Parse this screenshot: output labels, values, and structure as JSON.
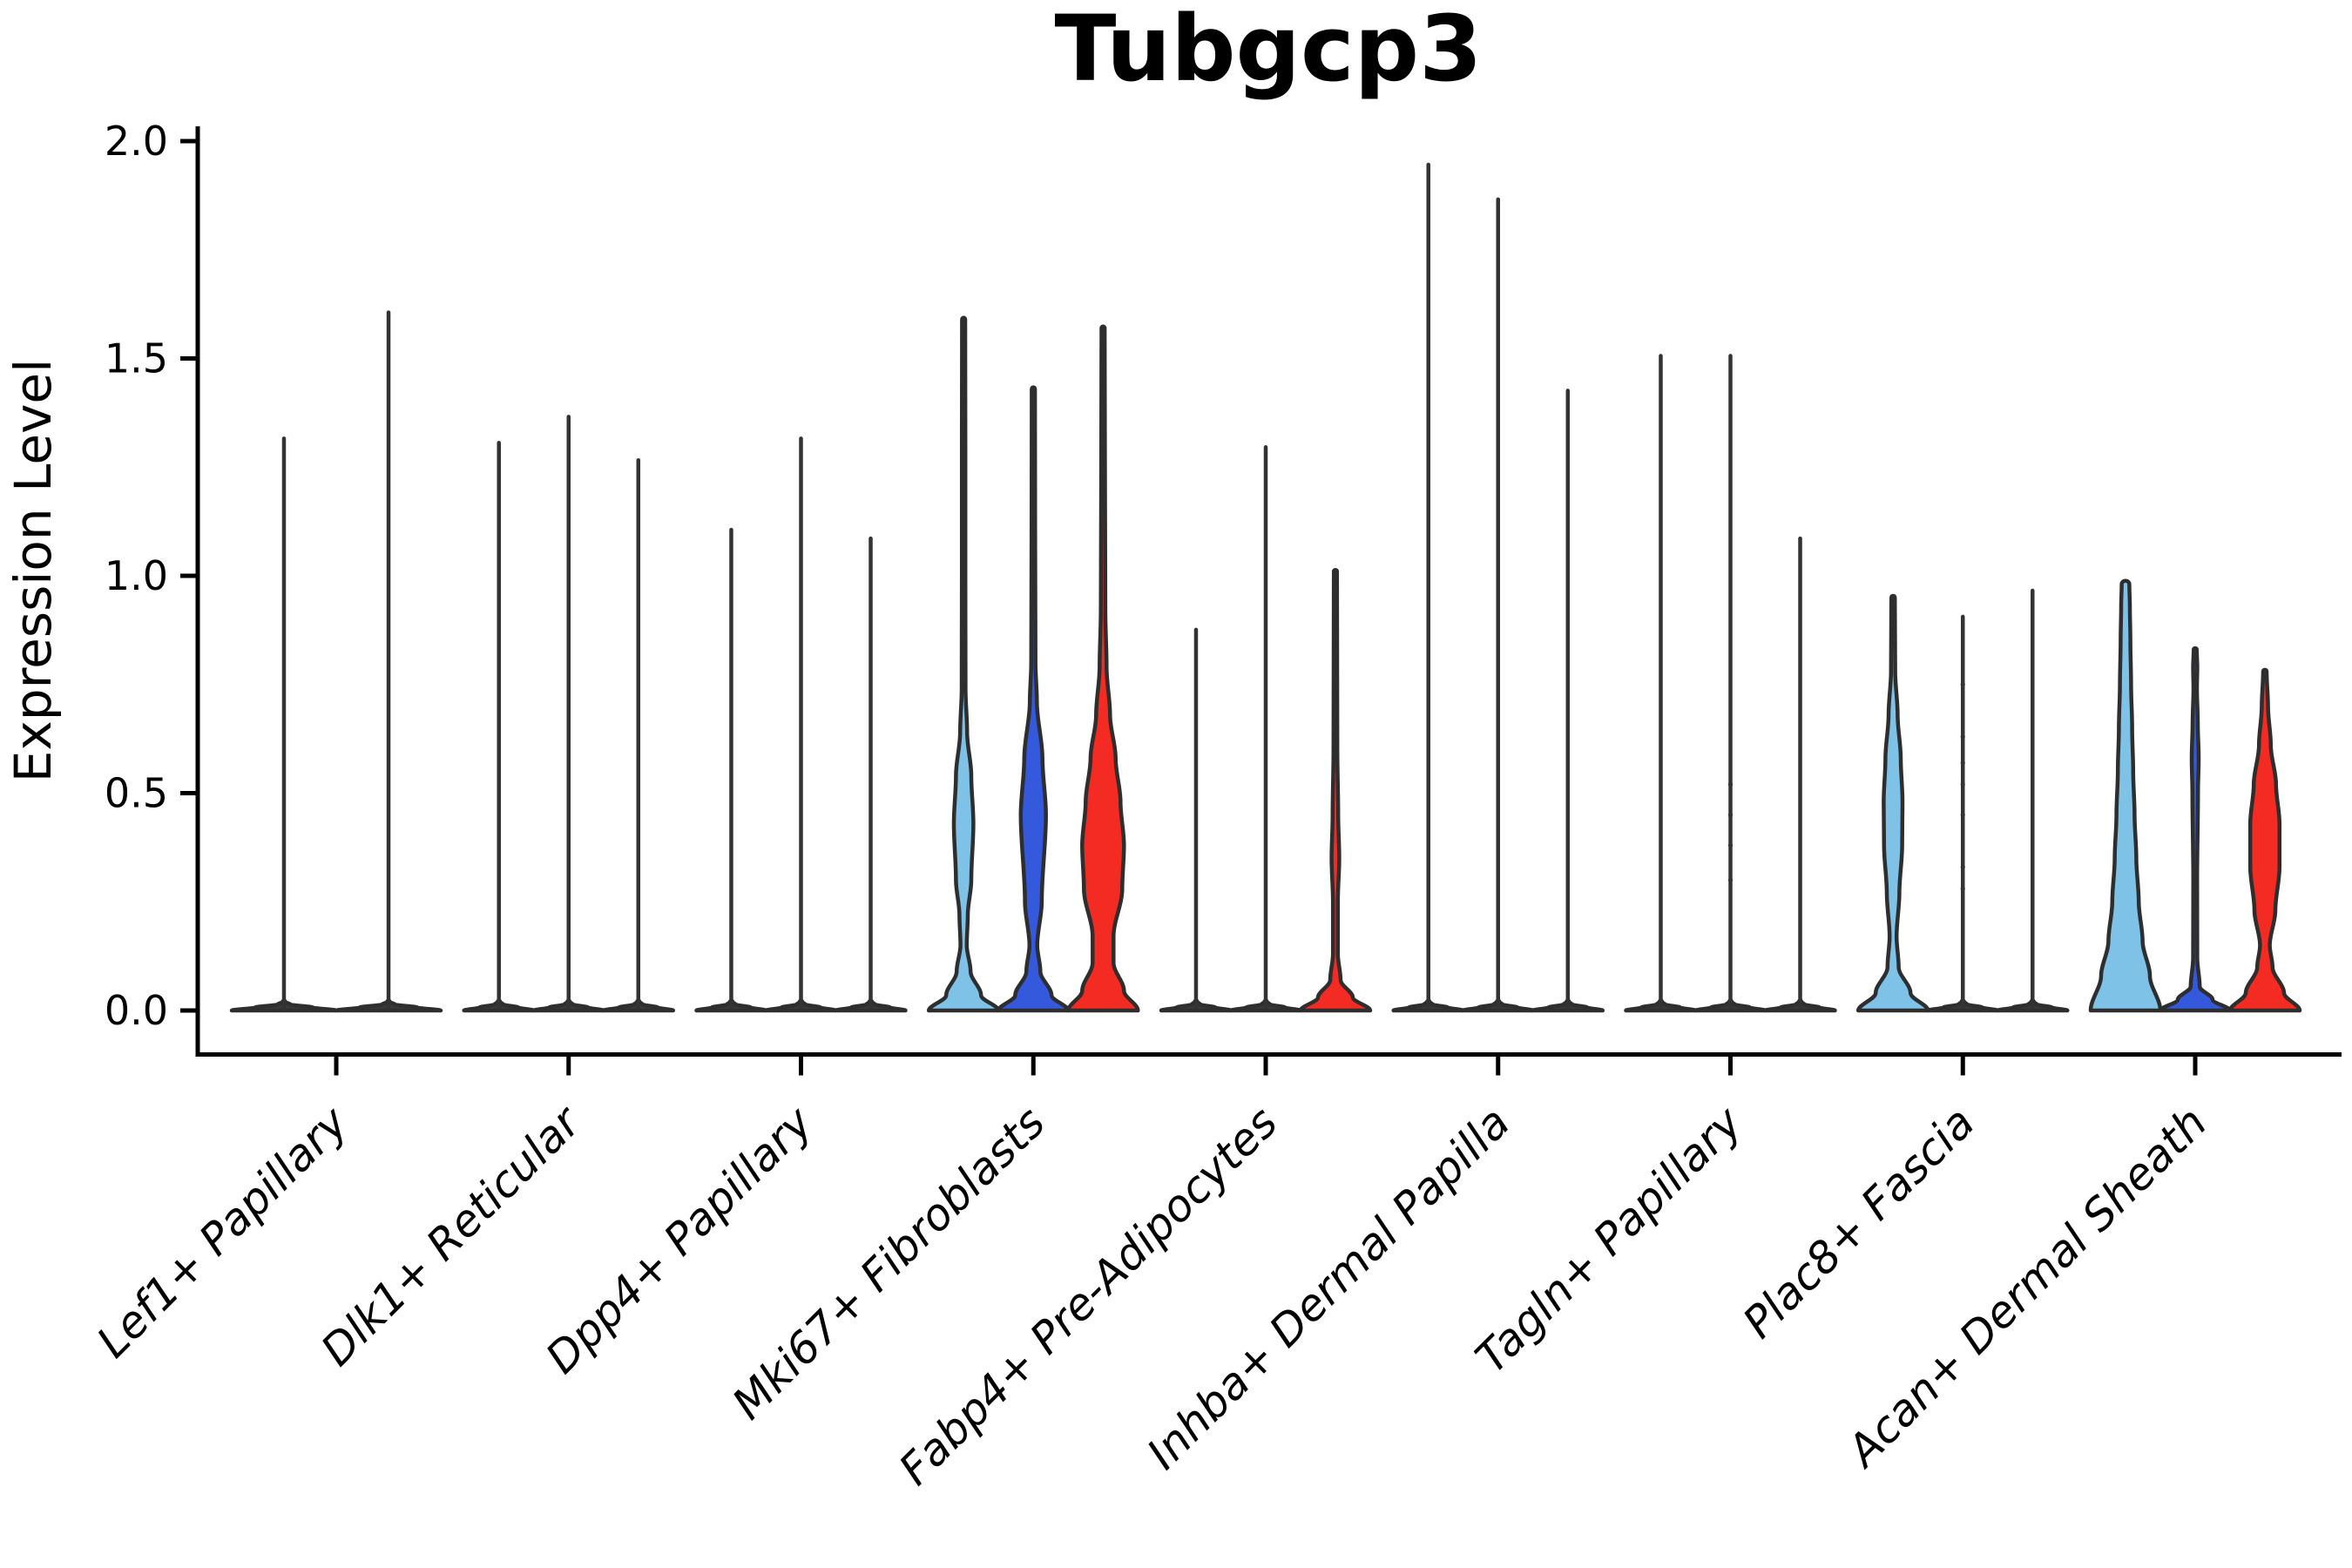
{
  "title": "Tubgcp3",
  "ylabel": "Expression Level",
  "colors": {
    "outline": "#2e2e2e",
    "spike": "#333333",
    "spike_base_fill": "#3a3a3a",
    "axis": "#000000",
    "background": "#ffffff",
    "series": {
      "skyblue": "#7fc2e8",
      "blue": "#3459dc",
      "red": "#f32b22"
    }
  },
  "chart_data": {
    "type": "violin",
    "title": "Tubgcp3",
    "xlabel": "",
    "ylabel": "Expression Level",
    "ylim": [
      0,
      2.0
    ],
    "yticks": [
      0.0,
      0.5,
      1.0,
      1.5,
      2.0
    ],
    "ytick_labels": [
      "0.0",
      "0.5",
      "1.0",
      "1.5",
      "2.0"
    ],
    "grid": false,
    "legend": "none",
    "categories": [
      "Lef1+ Papillary",
      "Dlk1+ Reticular",
      "Dpp4+ Papillary",
      "Mki67+ Fibroblasts",
      "Fabp4+ Pre-Adipocytes",
      "Inhba+ Dermal Papilla",
      "Tagln+ Papillary",
      "Plac8+ Fascia",
      "Acan+ Dermal Sheath"
    ],
    "groups": [
      {
        "category": "Lef1+ Papillary",
        "violins": [
          {
            "color": "skyblue",
            "offset": -0.225,
            "width": 0.45,
            "max": 1.32,
            "shape": "spike"
          },
          {
            "color": "red",
            "offset": 0.225,
            "width": 0.45,
            "max": 1.61,
            "shape": "spike"
          }
        ]
      },
      {
        "category": "Dlk1+ Reticular",
        "violins": [
          {
            "color": "skyblue",
            "offset": -0.3,
            "width": 0.3,
            "max": 1.31,
            "shape": "spike"
          },
          {
            "color": "blue",
            "offset": 0.0,
            "width": 0.3,
            "max": 1.37,
            "shape": "spike"
          },
          {
            "color": "red",
            "offset": 0.3,
            "width": 0.3,
            "max": 1.27,
            "shape": "spike"
          }
        ]
      },
      {
        "category": "Dpp4+ Papillary",
        "violins": [
          {
            "color": "skyblue",
            "offset": -0.3,
            "width": 0.3,
            "max": 1.11,
            "shape": "spike"
          },
          {
            "color": "blue",
            "offset": 0.0,
            "width": 0.3,
            "max": 1.32,
            "shape": "spike"
          },
          {
            "color": "red",
            "offset": 0.3,
            "width": 0.3,
            "max": 1.09,
            "shape": "spike"
          }
        ]
      },
      {
        "category": "Mki67+ Fibroblasts",
        "violins": [
          {
            "color": "skyblue",
            "offset": -0.3,
            "width": 0.3,
            "max": 1.59,
            "shape": "violin",
            "profile": [
              [
                0,
                1
              ],
              [
                0.035,
                0.5
              ],
              [
                0.09,
                0.2
              ],
              [
                0.15,
                0.09
              ],
              [
                0.22,
                0.12
              ],
              [
                0.3,
                0.22
              ],
              [
                0.43,
                0.28
              ],
              [
                0.54,
                0.22
              ],
              [
                0.64,
                0.1
              ],
              [
                0.74,
                0.055
              ],
              [
                1.0,
                0.05
              ],
              [
                1.3,
                0.05
              ],
              [
                1.59,
                0.045
              ]
            ]
          },
          {
            "color": "blue",
            "offset": 0.0,
            "width": 0.3,
            "max": 1.43,
            "shape": "violin",
            "profile": [
              [
                0,
                1
              ],
              [
                0.035,
                0.52
              ],
              [
                0.09,
                0.2
              ],
              [
                0.15,
                0.11
              ],
              [
                0.25,
                0.24
              ],
              [
                0.45,
                0.36
              ],
              [
                0.58,
                0.26
              ],
              [
                0.71,
                0.1
              ],
              [
                0.8,
                0.06
              ],
              [
                1.1,
                0.05
              ],
              [
                1.43,
                0.045
              ]
            ]
          },
          {
            "color": "red",
            "offset": 0.3,
            "width": 0.3,
            "max": 1.57,
            "shape": "violin",
            "profile": [
              [
                0,
                1
              ],
              [
                0.045,
                0.6
              ],
              [
                0.11,
                0.3
              ],
              [
                0.17,
                0.3
              ],
              [
                0.28,
                0.55
              ],
              [
                0.38,
                0.6
              ],
              [
                0.48,
                0.5
              ],
              [
                0.58,
                0.36
              ],
              [
                0.68,
                0.2
              ],
              [
                0.79,
                0.1
              ],
              [
                0.92,
                0.065
              ],
              [
                1.2,
                0.055
              ],
              [
                1.57,
                0.045
              ]
            ]
          }
        ]
      },
      {
        "category": "Fabp4+ Pre-Adipocytes",
        "violins": [
          {
            "color": "skyblue",
            "offset": -0.3,
            "width": 0.3,
            "max": 0.88,
            "shape": "spike"
          },
          {
            "color": "blue",
            "offset": 0.0,
            "width": 0.3,
            "max": 1.3,
            "shape": "spike"
          },
          {
            "color": "red",
            "offset": 0.3,
            "width": 0.3,
            "max": 1.01,
            "shape": "violin",
            "profile": [
              [
                0,
                1
              ],
              [
                0.03,
                0.5
              ],
              [
                0.07,
                0.15
              ],
              [
                0.13,
                0.07
              ],
              [
                0.25,
                0.07
              ],
              [
                0.35,
                0.11
              ],
              [
                0.45,
                0.08
              ],
              [
                0.6,
                0.055
              ],
              [
                0.8,
                0.05
              ],
              [
                1.01,
                0.045
              ]
            ]
          }
        ]
      },
      {
        "category": "Inhba+ Dermal Papilla",
        "violins": [
          {
            "color": "skyblue",
            "offset": -0.3,
            "width": 0.3,
            "max": 1.95,
            "shape": "spike"
          },
          {
            "color": "blue",
            "offset": 0.0,
            "width": 0.3,
            "max": 1.87,
            "shape": "spike"
          },
          {
            "color": "red",
            "offset": 0.3,
            "width": 0.3,
            "max": 1.43,
            "shape": "spike"
          }
        ]
      },
      {
        "category": "Tagln+ Papillary",
        "violins": [
          {
            "color": "skyblue",
            "offset": -0.3,
            "width": 0.3,
            "max": 1.51,
            "shape": "spike"
          },
          {
            "color": "blue",
            "offset": 0.0,
            "width": 0.3,
            "max": 1.51,
            "shape": "spike",
            "dots": [
              0.3,
              0.38,
              0.45,
              0.52
            ]
          },
          {
            "color": "red",
            "offset": 0.3,
            "width": 0.3,
            "max": 1.09,
            "shape": "spike"
          }
        ]
      },
      {
        "category": "Plac8+ Fascia",
        "violins": [
          {
            "color": "skyblue",
            "offset": -0.3,
            "width": 0.3,
            "max": 0.95,
            "shape": "violin",
            "profile": [
              [
                0,
                1
              ],
              [
                0.04,
                0.5
              ],
              [
                0.1,
                0.16
              ],
              [
                0.17,
                0.1
              ],
              [
                0.27,
                0.18
              ],
              [
                0.38,
                0.26
              ],
              [
                0.48,
                0.27
              ],
              [
                0.58,
                0.22
              ],
              [
                0.68,
                0.13
              ],
              [
                0.78,
                0.06
              ],
              [
                0.95,
                0.05
              ]
            ]
          },
          {
            "color": "blue",
            "offset": 0.0,
            "width": 0.3,
            "max": 0.91,
            "shape": "spike",
            "dots": [
              0.28,
              0.33,
              0.45,
              0.52,
              0.57,
              0.63,
              0.75
            ]
          },
          {
            "color": "red",
            "offset": 0.3,
            "width": 0.3,
            "max": 0.97,
            "shape": "spike"
          }
        ]
      },
      {
        "category": "Acan+ Dermal Sheath",
        "violins": [
          {
            "color": "skyblue",
            "offset": -0.3,
            "width": 0.3,
            "max": 0.98,
            "shape": "violin",
            "profile": [
              [
                0,
                1
              ],
              [
                0.08,
                0.7
              ],
              [
                0.16,
                0.49
              ],
              [
                0.25,
                0.38
              ],
              [
                0.35,
                0.31
              ],
              [
                0.45,
                0.26
              ],
              [
                0.55,
                0.22
              ],
              [
                0.65,
                0.19
              ],
              [
                0.75,
                0.16
              ],
              [
                0.85,
                0.14
              ],
              [
                0.93,
                0.125
              ],
              [
                0.98,
                0.11
              ]
            ]
          },
          {
            "color": "blue",
            "offset": 0.0,
            "width": 0.3,
            "max": 0.83,
            "shape": "violin",
            "profile": [
              [
                0,
                1
              ],
              [
                0.025,
                0.5
              ],
              [
                0.055,
                0.13
              ],
              [
                0.12,
                0.06
              ],
              [
                0.3,
                0.055
              ],
              [
                0.5,
                0.08
              ],
              [
                0.58,
                0.1
              ],
              [
                0.66,
                0.075
              ],
              [
                0.74,
                0.05
              ],
              [
                0.79,
                0.06
              ],
              [
                0.83,
                0.045
              ]
            ]
          },
          {
            "color": "red",
            "offset": 0.3,
            "width": 0.3,
            "max": 0.78,
            "shape": "violin",
            "profile": [
              [
                0,
                1
              ],
              [
                0.04,
                0.55
              ],
              [
                0.1,
                0.22
              ],
              [
                0.15,
                0.14
              ],
              [
                0.23,
                0.3
              ],
              [
                0.33,
                0.42
              ],
              [
                0.43,
                0.42
              ],
              [
                0.52,
                0.32
              ],
              [
                0.61,
                0.17
              ],
              [
                0.7,
                0.09
              ],
              [
                0.78,
                0.05
              ]
            ]
          }
        ]
      }
    ]
  }
}
